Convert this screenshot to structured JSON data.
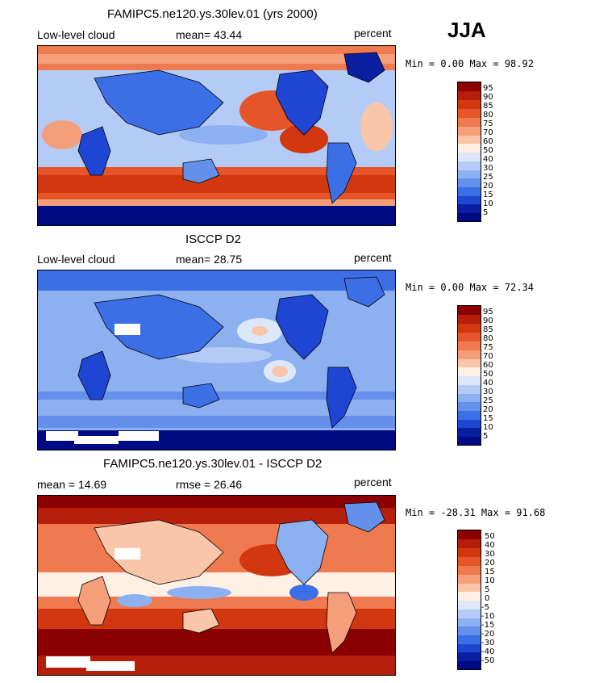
{
  "season": "JJA",
  "panels": [
    {
      "title": "FAMIPC5.ne120.ys.30lev.01 (yrs 2000)",
      "left_label": "Low-level cloud",
      "stat_label": "mean=  43.44",
      "units": "percent",
      "minmax": "Min =   0.00 Max =  98.92",
      "colorbar": [
        "95",
        "90",
        "85",
        "80",
        "75",
        "70",
        "60",
        "50",
        "40",
        "30",
        "25",
        "20",
        "15",
        "10",
        "5"
      ]
    },
    {
      "title": "ISCCP D2",
      "left_label": "Low-level cloud",
      "stat_label": "mean=  28.75",
      "units": "percent",
      "minmax": "Min =   0.00 Max =  72.34",
      "colorbar": [
        "95",
        "90",
        "85",
        "80",
        "75",
        "70",
        "60",
        "50",
        "40",
        "30",
        "25",
        "20",
        "15",
        "10",
        "5"
      ]
    },
    {
      "title": "FAMIPC5.ne120.ys.30lev.01 - ISCCP D2",
      "left_label": "mean =  14.69",
      "stat_label": "rmse =  26.46",
      "units": "percent",
      "minmax": "Min = -28.31 Max =  91.68",
      "colorbar": [
        "50",
        "40",
        "30",
        "20",
        "15",
        "10",
        "5",
        "0",
        "-5",
        "-10",
        "-15",
        "-20",
        "-30",
        "-40",
        "-50"
      ]
    }
  ],
  "colors": {
    "scale": [
      "#8b0000",
      "#b41e0a",
      "#d2380f",
      "#e6552a",
      "#f07a50",
      "#f59e7a",
      "#fac6aa",
      "#fff0e6",
      "#dce8fa",
      "#b4ccf5",
      "#8cb0f0",
      "#6490eb",
      "#3c6ee6",
      "#1e46d2",
      "#0a1ea0",
      "#000a82"
    ],
    "land_outline": "#000000"
  }
}
